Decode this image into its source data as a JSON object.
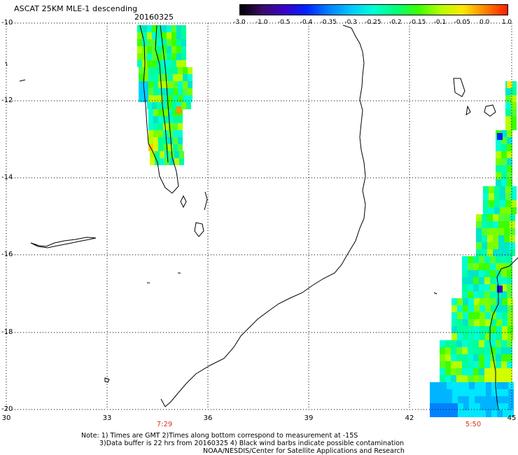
{
  "title": "ASCAT 25KM MLE-1 descending",
  "date": "20160325",
  "colorbar": {
    "labels": [
      "-3.0",
      "-1.0",
      "-0.5",
      "-0.4",
      "-0.35",
      "-0.3",
      "-0.25",
      "-0.2",
      "-0.15",
      "-0.1",
      "-0.05",
      "0.0",
      "1.0"
    ],
    "colors": [
      "#000000",
      "#3a0a6a",
      "#3b00c8",
      "#0024ff",
      "#0082ff",
      "#00c8ff",
      "#00ffd2",
      "#00ff78",
      "#3cff00",
      "#b4ff00",
      "#ffe600",
      "#ff8200",
      "#ff1e00"
    ]
  },
  "axes": {
    "lat_ticks": [
      "-10",
      "-12",
      "-14",
      "-16",
      "-18",
      "-20"
    ],
    "lon_ticks": [
      "30",
      "33",
      "36",
      "39",
      "42",
      "45"
    ]
  },
  "pass_times": [
    {
      "label": "7:29"
    },
    {
      "label": "5:50"
    }
  ],
  "notes": [
    "Note: 1) Times are GMT 2)Times along bottom correspond to measurement at -15S",
    "3)Data buffer is 22 hrs from 20160325 4) Black wind barbs indicate possible contamination",
    "NOAA/NESDIS/Center for Satellite Applications and Research"
  ]
}
